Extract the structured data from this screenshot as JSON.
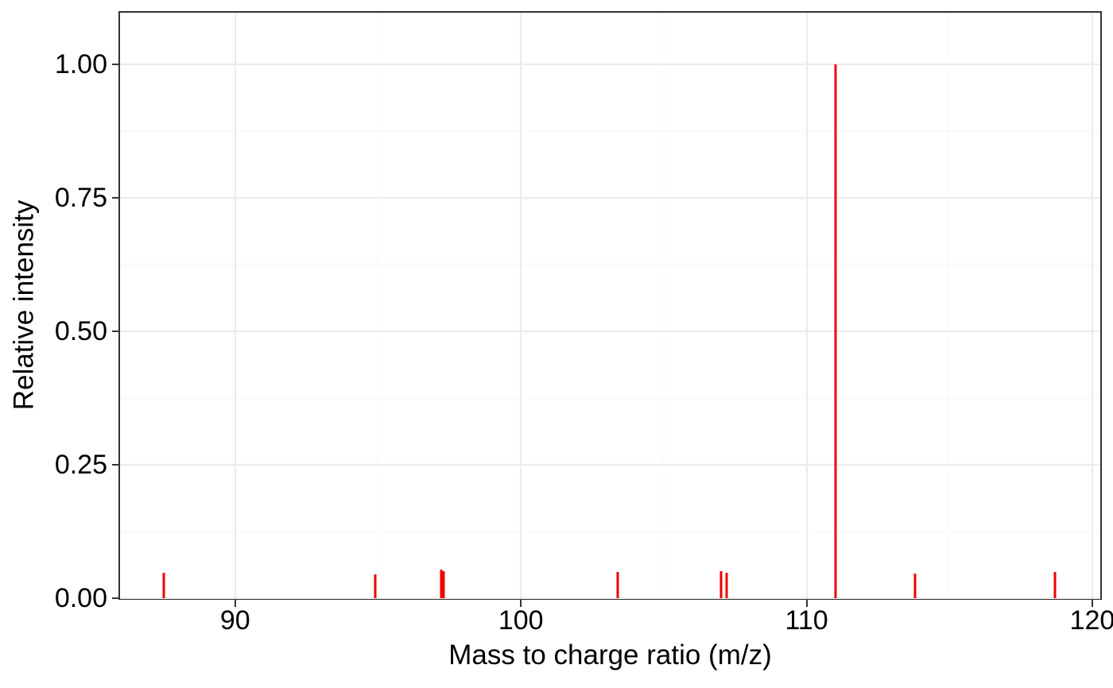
{
  "chart_data": {
    "type": "bar",
    "subtype": "mass-spectrum-stick-plot",
    "title": "",
    "xlabel": "Mass to charge ratio (m/z)",
    "ylabel": "Relative intensity",
    "x": [
      87.5,
      94.9,
      97.2,
      97.3,
      103.4,
      107.0,
      107.2,
      111.0,
      113.8,
      118.7
    ],
    "series": [
      {
        "name": "relative_intensity",
        "color": "#ee0000",
        "values": [
          0.047,
          0.045,
          0.053,
          0.05,
          0.049,
          0.05,
          0.048,
          1.0,
          0.046,
          0.049
        ]
      }
    ],
    "xlim": [
      85.97,
      120.28
    ],
    "ylim": [
      0,
      1.097
    ],
    "x_major_ticks": [
      90,
      100,
      110,
      120
    ],
    "x_tick_labels": [
      "90",
      "100",
      "110",
      "120"
    ],
    "x_minor_gridlines": [
      95,
      105,
      115
    ],
    "y_major_ticks": [
      0,
      0.25,
      0.5,
      0.75,
      1
    ],
    "y_tick_labels": [
      "0.00",
      "0.25",
      "0.50",
      "0.75",
      "1.00"
    ],
    "y_minor_gridlines": [
      0.125,
      0.375,
      0.625,
      0.875
    ],
    "grid": "on",
    "legend": "none",
    "highest_peak": {
      "mz": 111.0,
      "intensity": 1.0
    }
  },
  "colors": {
    "peak": "#ee0000",
    "panel_border": "#333333",
    "grid_major": "#ebebeb",
    "grid_minor": "#f5f5f5",
    "background": "#ffffff",
    "text": "#000000",
    "tick_mark": "#333333"
  }
}
